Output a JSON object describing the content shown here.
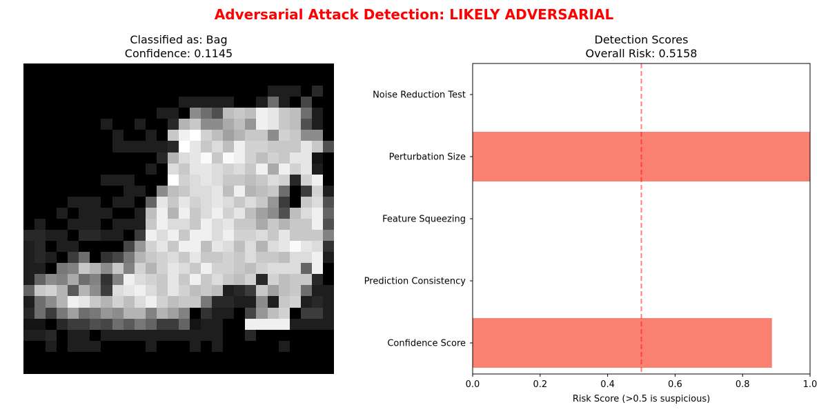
{
  "figure": {
    "suptitle": "Adversarial Attack Detection: LIKELY ADVERSARIAL",
    "suptitle_color": "#ff0000"
  },
  "image_panel": {
    "title_line1": "Classified as: Bag",
    "title_line2": "Confidence: 0.1145",
    "colormap": "gray",
    "pixels": [
      [
        0,
        0,
        0,
        0,
        0,
        0,
        0,
        0,
        0,
        0,
        0,
        0,
        0,
        0,
        0,
        0,
        0,
        0,
        0,
        0,
        0,
        0,
        0,
        0,
        0,
        0,
        0,
        0
      ],
      [
        0,
        0,
        0,
        0,
        0,
        0,
        0,
        0,
        0,
        0,
        0,
        0,
        0,
        0,
        0,
        0,
        0,
        0,
        0,
        0,
        0,
        0,
        0,
        0,
        0,
        0,
        0,
        0
      ],
      [
        0,
        0,
        0,
        0,
        0,
        0,
        0,
        0,
        0,
        0,
        0,
        0,
        0,
        0,
        0,
        0,
        0,
        0,
        0,
        0,
        0,
        0,
        30,
        30,
        30,
        0,
        40,
        0
      ],
      [
        0,
        0,
        0,
        0,
        0,
        0,
        0,
        0,
        0,
        0,
        0,
        0,
        0,
        0,
        30,
        30,
        30,
        30,
        30,
        0,
        0,
        30,
        110,
        30,
        0,
        70,
        0,
        0
      ],
      [
        0,
        0,
        0,
        0,
        0,
        0,
        0,
        0,
        0,
        0,
        0,
        0,
        30,
        30,
        0,
        140,
        110,
        80,
        190,
        200,
        190,
        240,
        230,
        200,
        190,
        110,
        30,
        0
      ],
      [
        0,
        0,
        0,
        0,
        0,
        0,
        0,
        30,
        0,
        0,
        30,
        0,
        0,
        40,
        180,
        200,
        140,
        140,
        170,
        190,
        150,
        240,
        230,
        200,
        190,
        80,
        30,
        0
      ],
      [
        0,
        0,
        0,
        0,
        0,
        0,
        0,
        0,
        30,
        0,
        0,
        30,
        0,
        200,
        240,
        255,
        210,
        190,
        160,
        180,
        200,
        200,
        140,
        210,
        200,
        140,
        140,
        0
      ],
      [
        0,
        0,
        0,
        0,
        0,
        0,
        0,
        0,
        30,
        30,
        30,
        30,
        30,
        40,
        255,
        230,
        200,
        220,
        190,
        240,
        210,
        210,
        200,
        200,
        200,
        230,
        200,
        80
      ],
      [
        0,
        0,
        0,
        0,
        0,
        0,
        0,
        0,
        0,
        0,
        0,
        0,
        40,
        180,
        220,
        230,
        250,
        200,
        250,
        240,
        210,
        190,
        210,
        200,
        230,
        230,
        20,
        0
      ],
      [
        0,
        0,
        0,
        0,
        0,
        0,
        0,
        0,
        0,
        0,
        0,
        30,
        0,
        220,
        200,
        230,
        230,
        220,
        210,
        220,
        200,
        240,
        170,
        240,
        210,
        230,
        30,
        0
      ],
      [
        0,
        0,
        0,
        0,
        0,
        0,
        0,
        30,
        30,
        30,
        0,
        0,
        0,
        255,
        210,
        220,
        230,
        220,
        200,
        200,
        190,
        200,
        220,
        210,
        40,
        210,
        240,
        0
      ],
      [
        0,
        0,
        0,
        0,
        0,
        0,
        0,
        0,
        0,
        30,
        30,
        0,
        140,
        190,
        200,
        220,
        220,
        230,
        190,
        240,
        180,
        190,
        200,
        110,
        0,
        60,
        210,
        30
      ],
      [
        0,
        0,
        0,
        0,
        30,
        30,
        30,
        0,
        30,
        30,
        0,
        100,
        230,
        200,
        230,
        210,
        220,
        230,
        220,
        200,
        220,
        200,
        150,
        60,
        0,
        200,
        220,
        80
      ],
      [
        0,
        0,
        0,
        30,
        0,
        30,
        30,
        30,
        0,
        0,
        30,
        190,
        240,
        180,
        240,
        200,
        220,
        240,
        210,
        230,
        190,
        160,
        140,
        80,
        190,
        220,
        240,
        100
      ],
      [
        0,
        30,
        0,
        0,
        30,
        30,
        30,
        0,
        30,
        30,
        30,
        200,
        240,
        220,
        220,
        200,
        240,
        220,
        230,
        200,
        200,
        170,
        200,
        180,
        200,
        200,
        240,
        80
      ],
      [
        40,
        40,
        30,
        30,
        0,
        40,
        40,
        30,
        30,
        0,
        60,
        240,
        220,
        240,
        200,
        240,
        240,
        220,
        240,
        210,
        210,
        220,
        200,
        230,
        200,
        200,
        200,
        130
      ],
      [
        30,
        40,
        0,
        30,
        30,
        0,
        0,
        0,
        0,
        70,
        150,
        210,
        230,
        200,
        240,
        240,
        190,
        230,
        220,
        190,
        220,
        180,
        220,
        230,
        250,
        230,
        220,
        50
      ],
      [
        30,
        40,
        30,
        0,
        60,
        110,
        0,
        50,
        70,
        120,
        180,
        200,
        210,
        220,
        200,
        230,
        200,
        200,
        210,
        200,
        220,
        200,
        200,
        190,
        220,
        220,
        240,
        30
      ],
      [
        30,
        30,
        0,
        120,
        130,
        200,
        180,
        140,
        200,
        130,
        210,
        180,
        210,
        230,
        220,
        200,
        240,
        210,
        210,
        200,
        190,
        210,
        220,
        220,
        220,
        100,
        240,
        0
      ],
      [
        30,
        100,
        140,
        130,
        170,
        110,
        130,
        50,
        130,
        240,
        220,
        210,
        200,
        230,
        200,
        240,
        200,
        220,
        200,
        190,
        210,
        40,
        210,
        190,
        200,
        200,
        40,
        0
      ],
      [
        100,
        200,
        210,
        180,
        90,
        180,
        140,
        60,
        220,
        230,
        240,
        220,
        200,
        230,
        210,
        190,
        200,
        190,
        30,
        40,
        60,
        200,
        160,
        190,
        200,
        110,
        30,
        30
      ],
      [
        30,
        110,
        140,
        180,
        240,
        230,
        200,
        180,
        210,
        190,
        220,
        240,
        210,
        190,
        200,
        200,
        120,
        40,
        40,
        30,
        30,
        140,
        30,
        200,
        210,
        30,
        40,
        30
      ],
      [
        40,
        110,
        60,
        120,
        160,
        110,
        120,
        150,
        140,
        180,
        180,
        130,
        180,
        160,
        130,
        0,
        50,
        30,
        30,
        0,
        70,
        150,
        190,
        210,
        0,
        60,
        60,
        30
      ],
      [
        20,
        20,
        0,
        40,
        60,
        60,
        80,
        70,
        110,
        90,
        120,
        100,
        60,
        60,
        100,
        20,
        30,
        30,
        0,
        0,
        240,
        240,
        240,
        240,
        30,
        30,
        30,
        30
      ],
      [
        30,
        30,
        40,
        0,
        30,
        30,
        0,
        30,
        30,
        30,
        30,
        30,
        30,
        30,
        30,
        30,
        30,
        30,
        0,
        0,
        40,
        0,
        0,
        0,
        0,
        0,
        0,
        0
      ],
      [
        0,
        0,
        30,
        0,
        30,
        30,
        30,
        0,
        0,
        0,
        0,
        30,
        0,
        0,
        0,
        30,
        0,
        30,
        0,
        0,
        0,
        0,
        0,
        30,
        0,
        0,
        0,
        0
      ],
      [
        0,
        0,
        0,
        0,
        0,
        0,
        0,
        0,
        0,
        0,
        0,
        0,
        0,
        0,
        0,
        0,
        0,
        0,
        0,
        0,
        0,
        0,
        0,
        0,
        0,
        0,
        0,
        0
      ],
      [
        0,
        0,
        0,
        0,
        0,
        0,
        0,
        0,
        0,
        0,
        0,
        0,
        0,
        0,
        0,
        0,
        0,
        0,
        0,
        0,
        0,
        0,
        0,
        0,
        0,
        0,
        0,
        0
      ]
    ]
  },
  "scores_panel": {
    "title_line1": "Detection Scores",
    "title_line2": "Overall Risk: 0.5158"
  },
  "chart_data": {
    "type": "bar",
    "orientation": "horizontal",
    "categories": [
      "Confidence Score",
      "Prediction Consistency",
      "Feature Squeezing",
      "Perturbation Size",
      "Noise Reduction Test"
    ],
    "values": [
      0.887,
      0.0,
      0.0,
      1.0,
      0.0
    ],
    "bar_color": "#fa8072",
    "xlabel": "Risk Score (>0.5 is suspicious)",
    "ylabel": "",
    "xlim": [
      0,
      1.0
    ],
    "xticks": [
      "0.0",
      "0.2",
      "0.4",
      "0.6",
      "0.8",
      "1.0"
    ],
    "threshold": 0.5,
    "threshold_color": "#ff0000",
    "threshold_style": "dashed",
    "grid": false
  }
}
